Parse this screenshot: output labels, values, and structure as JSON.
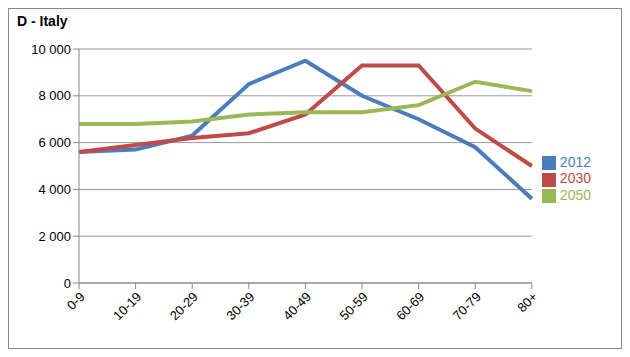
{
  "chart_data": {
    "type": "line",
    "title": "D - Italy",
    "categories": [
      "0-9",
      "10-19",
      "20-29",
      "30-39",
      "40-49",
      "50-59",
      "60-69",
      "70-79",
      "80+"
    ],
    "series": [
      {
        "name": "2012",
        "color": "#4a7ebb",
        "values": [
          5600,
          5700,
          6300,
          8500,
          9500,
          8000,
          7000,
          5800,
          3600
        ]
      },
      {
        "name": "2030",
        "color": "#be4b48",
        "values": [
          5600,
          5900,
          6200,
          6400,
          7200,
          9300,
          9300,
          6600,
          5000
        ]
      },
      {
        "name": "2050",
        "color": "#98b954",
        "values": [
          6800,
          6800,
          6900,
          7200,
          7300,
          7300,
          7600,
          8600,
          8200
        ]
      }
    ],
    "ylim": [
      0,
      10000
    ],
    "yticks": [
      0,
      {
        "value": 2000,
        "label": "2 000"
      },
      {
        "value": 4000,
        "label": "4 000"
      },
      {
        "value": 6000,
        "label": "6 000"
      },
      {
        "value": 8000,
        "label": "8 000"
      },
      {
        "value": 10000,
        "label": "10 000"
      }
    ],
    "grid": true,
    "legend": "right"
  }
}
